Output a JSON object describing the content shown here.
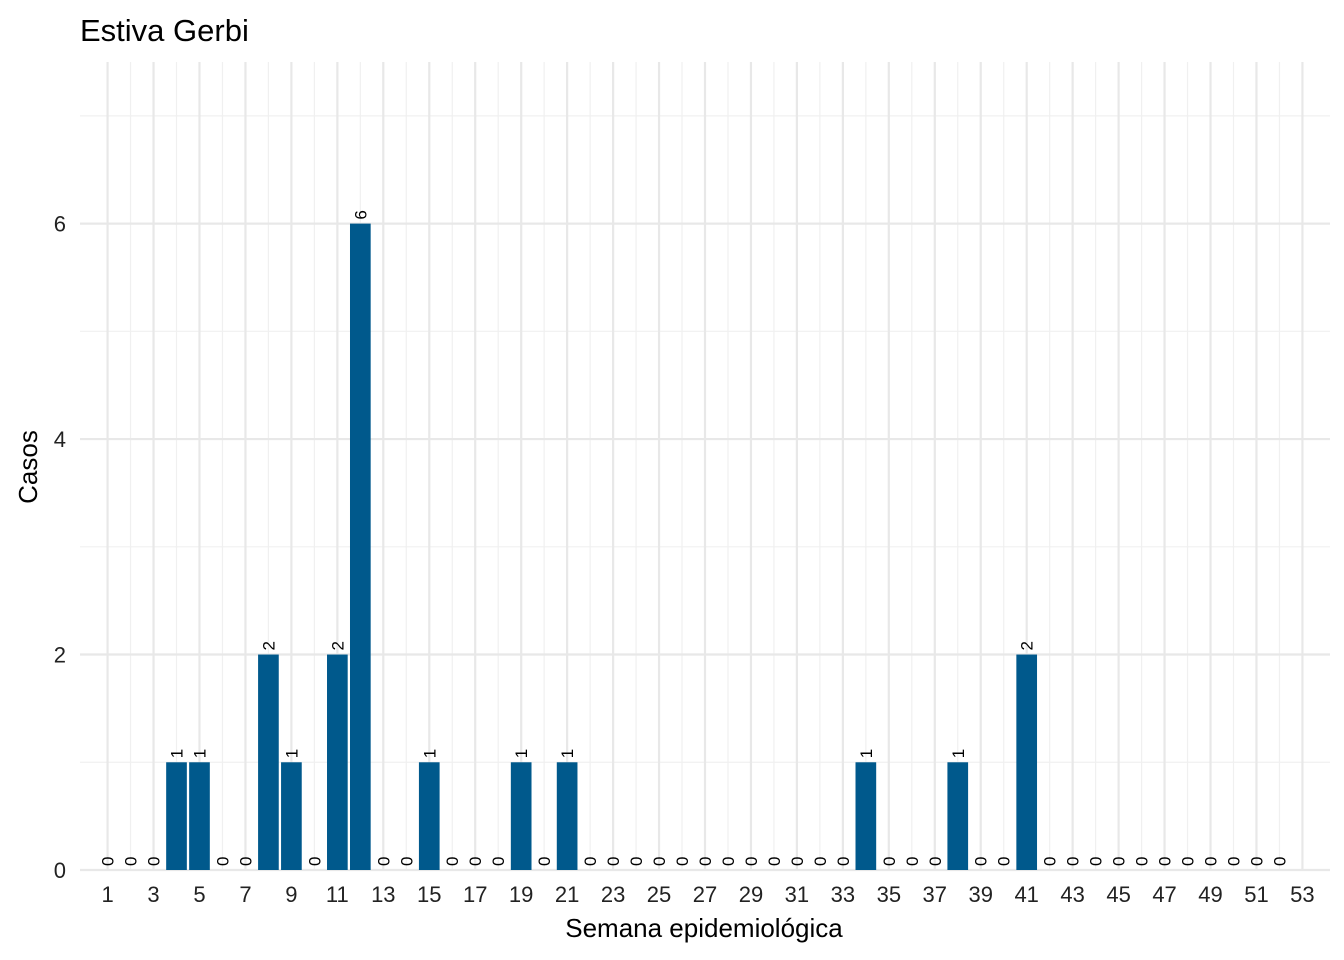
{
  "chart_data": {
    "type": "bar",
    "title": "Estiva Gerbi",
    "xlabel": "Semana epidemiológica",
    "ylabel": "Casos",
    "x": [
      1,
      2,
      3,
      4,
      5,
      6,
      7,
      8,
      9,
      10,
      11,
      12,
      13,
      14,
      15,
      16,
      17,
      18,
      19,
      20,
      21,
      22,
      23,
      24,
      25,
      26,
      27,
      28,
      29,
      30,
      31,
      32,
      33,
      34,
      35,
      36,
      37,
      38,
      39,
      40,
      41,
      42,
      43,
      44,
      45,
      46,
      47,
      48,
      49,
      50,
      51,
      52
    ],
    "values": [
      0,
      0,
      0,
      1,
      1,
      0,
      0,
      2,
      1,
      0,
      2,
      6,
      0,
      0,
      1,
      0,
      0,
      0,
      1,
      0,
      1,
      0,
      0,
      0,
      0,
      0,
      0,
      0,
      0,
      0,
      0,
      0,
      0,
      1,
      0,
      0,
      0,
      1,
      0,
      0,
      2,
      0,
      0,
      0,
      0,
      0,
      0,
      0,
      0,
      0,
      0,
      0
    ],
    "x_ticks": [
      1,
      3,
      5,
      7,
      9,
      11,
      13,
      15,
      17,
      19,
      21,
      23,
      25,
      27,
      29,
      31,
      33,
      35,
      37,
      39,
      41,
      43,
      45,
      47,
      49,
      51,
      53
    ],
    "y_ticks": [
      0,
      2,
      4,
      6
    ],
    "xlim": [
      -0.2,
      54.2
    ],
    "ylim": [
      0,
      7.5
    ],
    "bar_color": "#00598c",
    "grid": true
  }
}
